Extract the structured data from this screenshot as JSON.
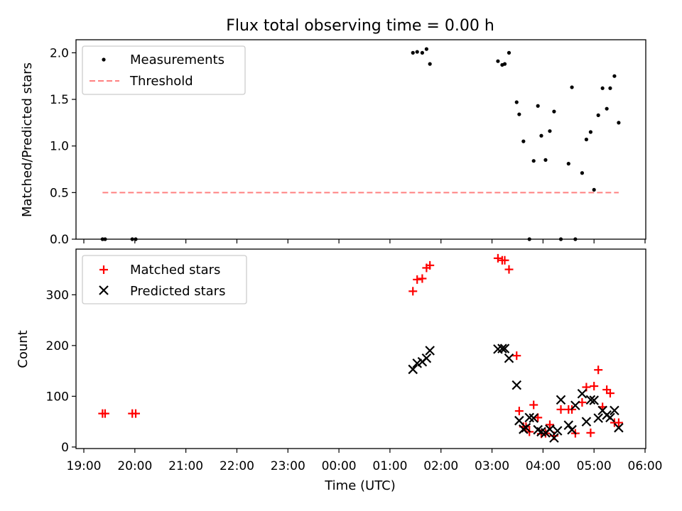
{
  "figure": {
    "title": "Flux total observing time = 0.00 h"
  },
  "chart_data": [
    {
      "type": "scatter",
      "ylabel": "Matched/Predicted stars",
      "ylim": [
        0,
        2.14
      ],
      "yticks": [
        0.0,
        0.5,
        1.0,
        1.5,
        2.0
      ],
      "yticklabels": [
        "0.0",
        "0.5",
        "1.0",
        "1.5",
        "2.0"
      ],
      "xlim": [
        "19:00",
        "06:00"
      ],
      "legend_position": "top-left",
      "series": [
        {
          "name": "Measurements",
          "marker": "dot",
          "color": "#000000",
          "x": [
            "19:22",
            "19:25",
            "19:57",
            "20:01",
            "01:27",
            "01:32",
            "01:38",
            "01:43",
            "01:47",
            "03:07",
            "03:12",
            "03:15",
            "03:20",
            "03:29",
            "03:32",
            "03:37",
            "03:44",
            "03:49",
            "03:54",
            "03:58",
            "04:03",
            "04:08",
            "04:13",
            "04:21",
            "04:30",
            "04:34",
            "04:38",
            "04:46",
            "04:51",
            "04:56",
            "05:00",
            "05:05",
            "05:10",
            "05:15",
            "05:19",
            "05:24",
            "05:29"
          ],
          "y": [
            0.0,
            0.0,
            0.0,
            0.0,
            2.0,
            2.01,
            2.0,
            2.04,
            1.88,
            1.91,
            1.87,
            1.88,
            2.0,
            1.47,
            1.34,
            1.05,
            0.0,
            0.84,
            1.43,
            1.11,
            0.85,
            1.16,
            1.37,
            0.0,
            0.81,
            1.63,
            0.0,
            0.71,
            1.07,
            1.15,
            0.53,
            1.33,
            1.62,
            1.4,
            1.62,
            1.75,
            1.25
          ]
        },
        {
          "name": "Threshold",
          "linestyle": "dashed",
          "color": "#ff8080",
          "x": [
            "19:22",
            "05:29"
          ],
          "y": [
            0.5,
            0.5
          ]
        }
      ]
    },
    {
      "type": "scatter",
      "ylabel": "Count",
      "xlabel": "Time (UTC)",
      "ylim": [
        -3,
        390
      ],
      "yticks": [
        0,
        100,
        200,
        300
      ],
      "yticklabels": [
        "0",
        "100",
        "200",
        "300"
      ],
      "xlim": [
        "19:00",
        "06:00"
      ],
      "xticks": [
        "19:00",
        "20:00",
        "21:00",
        "22:00",
        "23:00",
        "00:00",
        "01:00",
        "02:00",
        "03:00",
        "04:00",
        "05:00",
        "06:00"
      ],
      "legend_position": "top-left",
      "series": [
        {
          "name": "Matched stars",
          "marker": "plus",
          "color": "#ff0000",
          "x": [
            "19:22",
            "19:25",
            "19:57",
            "20:01",
            "01:27",
            "01:32",
            "01:38",
            "01:43",
            "01:47",
            "03:07",
            "03:12",
            "03:15",
            "03:20",
            "03:29",
            "03:32",
            "03:37",
            "03:40",
            "03:44",
            "03:49",
            "03:54",
            "03:58",
            "04:03",
            "04:08",
            "04:13",
            "04:21",
            "04:30",
            "04:34",
            "04:38",
            "04:46",
            "04:51",
            "04:56",
            "05:00",
            "05:05",
            "05:10",
            "05:15",
            "05:19",
            "05:24",
            "05:29"
          ],
          "y": [
            66,
            66,
            66,
            66,
            307,
            330,
            332,
            353,
            358,
            372,
            368,
            368,
            350,
            180,
            71,
            40,
            40,
            30,
            83,
            58,
            26,
            27,
            44,
            22,
            74,
            74,
            74,
            27,
            88,
            118,
            28,
            120,
            152,
            79,
            113,
            106,
            48,
            48
          ]
        },
        {
          "name": "Predicted stars",
          "marker": "x",
          "color": "#000000",
          "x": [
            "01:27",
            "01:32",
            "01:38",
            "01:43",
            "01:47",
            "03:07",
            "03:12",
            "03:15",
            "03:20",
            "03:29",
            "03:32",
            "03:37",
            "03:40",
            "03:44",
            "03:49",
            "03:54",
            "03:58",
            "04:03",
            "04:08",
            "04:13",
            "04:17",
            "04:21",
            "04:30",
            "04:34",
            "04:38",
            "04:46",
            "04:51",
            "04:56",
            "05:00",
            "05:05",
            "05:10",
            "05:15",
            "05:19",
            "05:24",
            "05:29"
          ],
          "y": [
            153,
            165,
            168,
            175,
            190,
            193,
            194,
            194,
            175,
            122,
            52,
            35,
            38,
            58,
            57,
            34,
            30,
            28,
            35,
            18,
            32,
            93,
            43,
            34,
            82,
            105,
            50,
            93,
            92,
            57,
            72,
            63,
            58,
            72,
            38
          ]
        }
      ]
    }
  ]
}
